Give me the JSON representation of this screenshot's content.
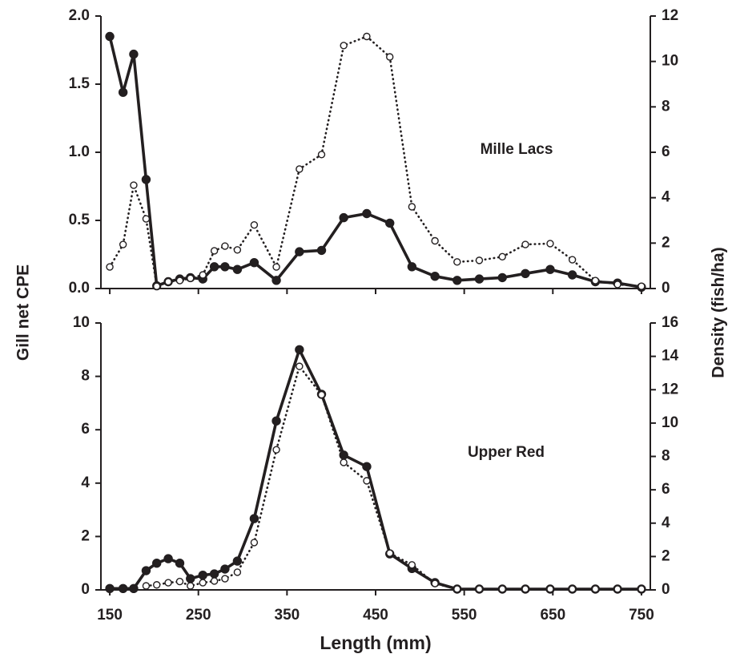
{
  "chart_data": [
    {
      "type": "line",
      "annotation": "Mille Lacs",
      "x": [
        150,
        165,
        177,
        191,
        203,
        216,
        229,
        241,
        255,
        268,
        280,
        294,
        313,
        338,
        364,
        389,
        414,
        440,
        466,
        491,
        517,
        542,
        567,
        593,
        619,
        647,
        672,
        698,
        723,
        750
      ],
      "series": [
        {
          "color": "#231f20",
          "style": "solid",
          "marker": "filled",
          "axis": "y",
          "values": [
            1.85,
            1.44,
            1.72,
            0.8,
            0.02,
            0.05,
            0.07,
            0.08,
            0.07,
            0.16,
            0.16,
            0.14,
            0.19,
            0.06,
            0.27,
            0.28,
            0.52,
            0.55,
            0.48,
            0.16,
            0.09,
            0.06,
            0.07,
            0.08,
            0.11,
            0.14,
            0.1,
            0.05,
            0.04,
            0.01
          ]
        },
        {
          "color": "#231f20",
          "style": "dotted",
          "marker": "open",
          "axis": "y2",
          "values": [
            0.95,
            1.94,
            4.55,
            3.07,
            0.1,
            0.3,
            0.35,
            0.45,
            0.6,
            1.66,
            1.87,
            1.7,
            2.8,
            0.95,
            5.26,
            5.9,
            10.7,
            11.1,
            10.2,
            3.6,
            2.1,
            1.17,
            1.24,
            1.4,
            1.94,
            1.98,
            1.27,
            0.35,
            0.18,
            0.1
          ]
        }
      ],
      "xlim": [
        140,
        760
      ],
      "xticks": [
        150,
        250,
        350,
        450,
        550,
        650,
        750
      ],
      "show_xtick_labels": false,
      "ylim": [
        0,
        2
      ],
      "yticks": [
        {
          "value": 0,
          "label": "0.0"
        },
        {
          "value": 0.5,
          "label": "0.5"
        },
        {
          "value": 1,
          "label": "1.0"
        },
        {
          "value": 1.5,
          "label": "1.5"
        },
        {
          "value": 2,
          "label": "2.0"
        }
      ],
      "y2lim": [
        0,
        12
      ],
      "y2ticks": [
        0,
        2,
        4,
        6,
        8,
        10,
        12
      ]
    },
    {
      "type": "line",
      "annotation": "Upper Red",
      "x": [
        150,
        165,
        177,
        191,
        203,
        216,
        229,
        241,
        255,
        268,
        280,
        294,
        313,
        338,
        364,
        389,
        414,
        440,
        466,
        491,
        517,
        542,
        567,
        593,
        619,
        647,
        672,
        698,
        723,
        750
      ],
      "series": [
        {
          "color": "#231f20",
          "style": "solid",
          "marker": "filled",
          "axis": "y",
          "values": [
            0.05,
            0.05,
            0.05,
            0.72,
            1.0,
            1.17,
            1.0,
            0.42,
            0.55,
            0.6,
            0.78,
            1.08,
            2.67,
            6.33,
            9.0,
            7.33,
            5.05,
            4.62,
            1.35,
            0.8,
            0.27,
            0.03,
            0.03,
            0.03,
            0.03,
            0.03,
            0.03,
            0.03,
            0.03,
            0.03
          ]
        },
        {
          "color": "#231f20",
          "style": "dotted",
          "marker": "open",
          "axis": "y2",
          "values": [
            null,
            null,
            null,
            0.24,
            0.3,
            0.43,
            0.5,
            0.24,
            0.43,
            0.53,
            0.67,
            1.06,
            2.84,
            8.4,
            13.4,
            11.7,
            7.64,
            6.54,
            2.2,
            1.5,
            0.38,
            0.05,
            0.05,
            0.05,
            0.05,
            0.05,
            0.05,
            0.05,
            0.05,
            0.05
          ]
        }
      ],
      "xlim": [
        140,
        760
      ],
      "xticks": [
        150,
        250,
        350,
        450,
        550,
        650,
        750
      ],
      "show_xtick_labels": true,
      "ylim": [
        0,
        10
      ],
      "yticks": [
        0,
        2,
        4,
        6,
        8,
        10
      ],
      "y2lim": [
        0,
        16
      ],
      "y2ticks": [
        0,
        2,
        4,
        6,
        8,
        10,
        12,
        14,
        16
      ]
    }
  ],
  "xlabel": "Length (mm)",
  "ylabel": "Gill net CPE",
  "y2label": "Density (fish/ha)"
}
